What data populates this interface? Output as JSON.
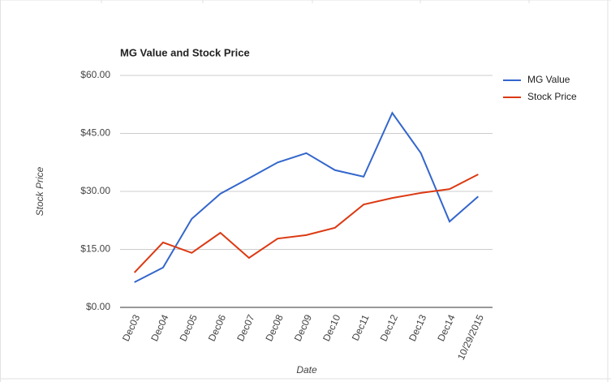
{
  "chart_data": {
    "type": "line",
    "title": "MG Value and Stock Price",
    "x_label": "Date",
    "y_label": "Stock Price",
    "categories": [
      "Dec03",
      "Dec04",
      "Dec05",
      "Dec06",
      "Dec07",
      "Dec08",
      "Dec09",
      "Dec10",
      "Dec11",
      "Dec12",
      "Dec13",
      "Dec14",
      "10/29/2015"
    ],
    "series": [
      {
        "name": "MG Value",
        "color": "#3366cc",
        "values": [
          6.5,
          10.3,
          22.9,
          29.4,
          33.4,
          37.5,
          39.9,
          35.5,
          33.8,
          50.3,
          39.9,
          22.2,
          28.7
        ]
      },
      {
        "name": "Stock Price",
        "color": "#dc3912",
        "values": [
          9.0,
          16.8,
          14.1,
          19.3,
          12.8,
          17.8,
          18.7,
          20.6,
          26.6,
          28.3,
          29.6,
          30.6,
          34.4
        ]
      }
    ],
    "ylim": [
      0,
      60
    ],
    "yticks": [
      {
        "value": 0,
        "label": "$0.00"
      },
      {
        "value": 15,
        "label": "$15.00"
      },
      {
        "value": 30,
        "label": "$30.00"
      },
      {
        "value": 45,
        "label": "$45.00"
      },
      {
        "value": 60,
        "label": "$60.00"
      }
    ],
    "grid": true,
    "legend": "right"
  }
}
